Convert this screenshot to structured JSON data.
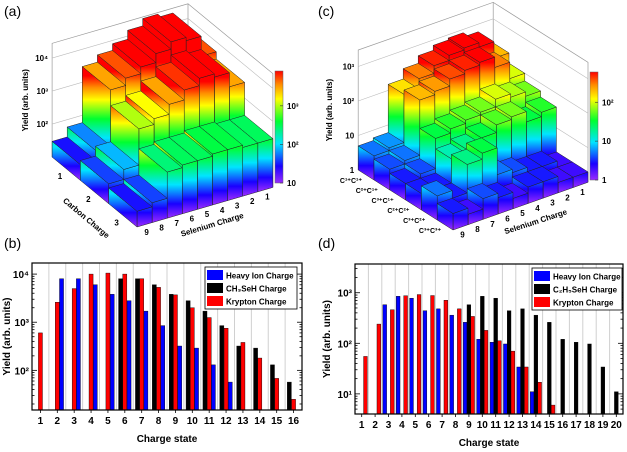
{
  "panel_labels": {
    "a": "(a)",
    "b": "(b)",
    "c": "(c)",
    "d": "(d)"
  },
  "chart_data": [
    {
      "panel": "a",
      "type": "bar3d",
      "zlabel": "Yield (arb. units)",
      "row_axis_label": "Carbon Charge",
      "col_axis_label": "Selenium Charge",
      "rows": [
        "1",
        "2",
        "3"
      ],
      "cols": [
        "1",
        "2",
        "3",
        "4",
        "5",
        "6",
        "7",
        "8",
        "9"
      ],
      "values": [
        [
          5000,
          20000,
          25000,
          15000,
          8000,
          5000,
          3000,
          60,
          30
        ],
        [
          3000,
          8000,
          10000,
          6000,
          3000,
          1500,
          1000,
          80,
          40
        ],
        [
          300,
          300,
          350,
          350,
          300,
          300,
          250,
          40,
          30
        ]
      ],
      "zscale": "log",
      "zlim": [
        10,
        28000
      ],
      "z_ticks": [
        {
          "v": 100,
          "label": "10²"
        },
        {
          "v": 1000,
          "label": "10³"
        },
        {
          "v": 10000,
          "label": "10⁴"
        }
      ],
      "colorbar": {
        "lim": [
          10,
          8000
        ],
        "ticks": [
          {
            "v": 10,
            "label": "10"
          },
          {
            "v": 100,
            "label": "10²"
          },
          {
            "v": 1000,
            "label": "10³"
          }
        ]
      }
    },
    {
      "panel": "b",
      "type": "bar",
      "xlabel": "Charge state",
      "ylabel": "Yield (arb. units)",
      "yscale": "log",
      "ylim": [
        15,
        17000
      ],
      "categories": [
        "1",
        "2",
        "3",
        "4",
        "5",
        "6",
        "7",
        "8",
        "9",
        "10",
        "11",
        "12",
        "13",
        "14",
        "15",
        "16"
      ],
      "y_ticks": [
        {
          "v": 100,
          "label": "10²"
        },
        {
          "v": 1000,
          "label": "10³"
        },
        {
          "v": 10000,
          "label": "10⁴"
        }
      ],
      "legend_position": "top-right",
      "series": [
        {
          "name": "Heavy Ion Charge",
          "color": "#0000ff",
          "offset": 0.25,
          "values": [
            null,
            8000,
            8000,
            6000,
            3800,
            2800,
            1700,
            850,
            320,
            290,
            130,
            57,
            null,
            null,
            null,
            null
          ]
        },
        {
          "name": "CH₃SeH Charge",
          "color": "#000000",
          "offset": -0.25,
          "values": [
            null,
            null,
            null,
            null,
            null,
            8000,
            8000,
            6000,
            3800,
            2800,
            1700,
            850,
            320,
            290,
            130,
            57
          ]
        },
        {
          "name": "Krypton Charge",
          "color": "#ff0000",
          "offset": 0,
          "values": [
            600,
            2600,
            5000,
            10000,
            10500,
            10000,
            8000,
            5300,
            3700,
            2000,
            1250,
            750,
            380,
            180,
            68,
            25
          ]
        }
      ]
    },
    {
      "panel": "c",
      "type": "bar3d",
      "zlabel": "Yield (arb. units)",
      "col_axis_label": "Selenium Charge",
      "rows": [
        "C¹⁺C¹⁺",
        "C²⁺C¹⁺",
        "C³⁺C¹⁺",
        "C²⁺C²⁺",
        "C³⁺C²⁺",
        "C³⁺C³⁺"
      ],
      "cols": [
        "1",
        "2",
        "3",
        "4",
        "5",
        "6",
        "7",
        "8",
        "9"
      ],
      "values": [
        [
          200,
          600,
          800,
          700,
          500,
          300,
          150,
          6,
          5
        ],
        [
          100,
          300,
          600,
          500,
          400,
          250,
          200,
          5,
          4
        ],
        [
          60,
          80,
          100,
          60,
          50,
          40,
          30,
          4,
          3
        ],
        [
          40,
          30,
          60,
          50,
          30,
          20,
          15,
          3,
          3
        ],
        [
          2,
          3,
          3,
          4,
          5,
          30,
          20,
          3,
          5
        ],
        [
          2,
          2,
          3,
          3,
          2,
          3,
          4,
          2,
          3
        ]
      ],
      "zscale": "log",
      "zlim": [
        1,
        3000
      ],
      "z_ticks": [
        {
          "v": 1,
          "label": "1"
        },
        {
          "v": 10,
          "label": "10"
        },
        {
          "v": 100,
          "label": "10²"
        },
        {
          "v": 1000,
          "label": "10³"
        }
      ],
      "colorbar": {
        "lim": [
          1,
          600
        ],
        "ticks": [
          {
            "v": 1,
            "label": "1"
          },
          {
            "v": 10,
            "label": "10"
          },
          {
            "v": 100,
            "label": "10²"
          }
        ]
      }
    },
    {
      "panel": "d",
      "type": "bar",
      "xlabel": "Charge state",
      "ylabel": "Yield (arb. units)",
      "yscale": "log",
      "ylim": [
        4,
        3700
      ],
      "categories": [
        "1",
        "2",
        "3",
        "4",
        "5",
        "6",
        "7",
        "8",
        "9",
        "10",
        "11",
        "12",
        "13",
        "14",
        "15",
        "16",
        "17",
        "18",
        "19",
        "20"
      ],
      "y_ticks": [
        {
          "v": 10,
          "label": "10¹"
        },
        {
          "v": 100,
          "label": "10²"
        },
        {
          "v": 1000,
          "label": "10³"
        }
      ],
      "legend_position": "top-right",
      "series": [
        {
          "name": "Heavy Ion Charge",
          "color": "#0000ff",
          "offset": -0.28,
          "values": [
            null,
            null,
            580,
            850,
            780,
            440,
            480,
            360,
            260,
            120,
            105,
            97,
            34,
            11,
            null,
            null,
            null,
            null,
            null,
            null
          ]
        },
        {
          "name": "C₂H₅SeH Charge",
          "color": "#000000",
          "offset": 0,
          "values": [
            null,
            null,
            null,
            null,
            null,
            null,
            null,
            null,
            580,
            850,
            780,
            440,
            480,
            360,
            260,
            120,
            105,
            97,
            34,
            11
          ]
        },
        {
          "name": "Krypton Charge",
          "color": "#ff0000",
          "offset": 0.28,
          "values": [
            55,
            240,
            460,
            870,
            920,
            880,
            710,
            480,
            340,
            180,
            112,
            70,
            34,
            17,
            6,
            null,
            null,
            null,
            null,
            null
          ]
        }
      ]
    }
  ]
}
